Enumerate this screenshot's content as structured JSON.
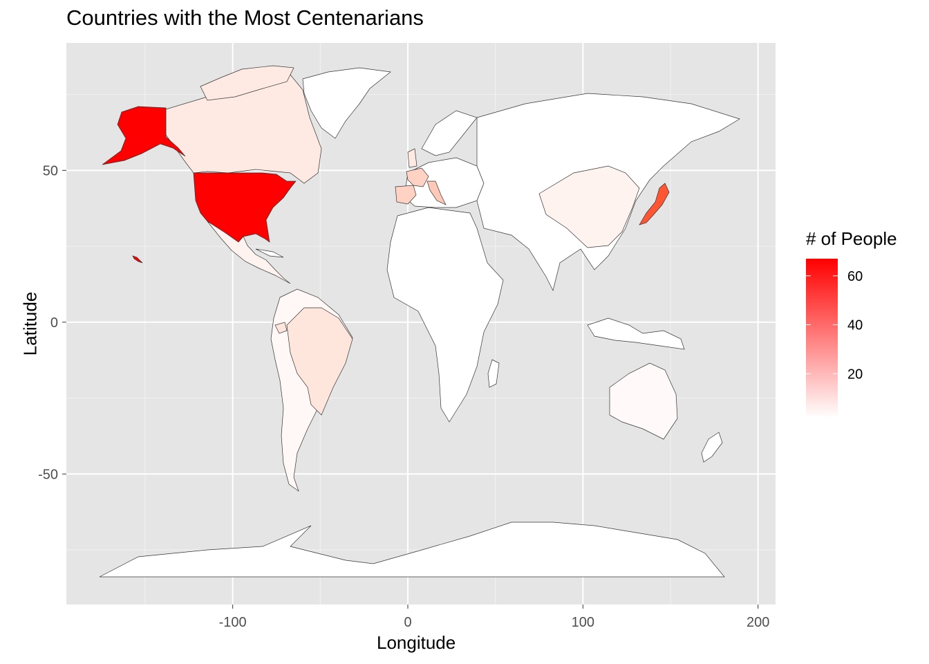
{
  "title": "Countries with the Most Centenarians",
  "x_axis": {
    "label": "Longitude",
    "ticks": [
      "-100",
      "0",
      "100",
      "200"
    ]
  },
  "y_axis": {
    "label": "Latitude",
    "ticks": [
      "50",
      "0",
      "-50"
    ]
  },
  "legend": {
    "title": "# of People",
    "ticks": [
      "60",
      "40",
      "20"
    ]
  },
  "colors": {
    "panel": "#e5e5e5",
    "grid": "#ffffff",
    "low": "#ffffff",
    "high": "#ff0000",
    "border": "#333333"
  },
  "chart_data": {
    "type": "choropleth",
    "title": "Countries with the Most Centenarians",
    "xlabel": "Longitude",
    "ylabel": "Latitude",
    "xlim": [
      -195,
      210
    ],
    "ylim": [
      -93,
      92
    ],
    "x_ticks": [
      -100,
      0,
      100,
      200
    ],
    "y_ticks": [
      50,
      0,
      -50
    ],
    "grid": true,
    "legend_position": "right",
    "color_scale": {
      "low": "#ffffff",
      "high": "#ff0000",
      "min": 2,
      "max": 67
    },
    "regions": [
      {
        "name": "USA",
        "value": 67
      },
      {
        "name": "Japan",
        "value": 50
      },
      {
        "name": "Italy",
        "value": 14
      },
      {
        "name": "France",
        "value": 12
      },
      {
        "name": "Spain",
        "value": 12
      },
      {
        "name": "Brazil",
        "value": 8
      },
      {
        "name": "Canada",
        "value": 6
      },
      {
        "name": "UK",
        "value": 4
      },
      {
        "name": "Germany",
        "value": 4
      },
      {
        "name": "Ecuador",
        "value": 4
      },
      {
        "name": "Mexico",
        "value": 3
      },
      {
        "name": "Argentina",
        "value": 2
      },
      {
        "name": "China",
        "value": 2
      },
      {
        "name": "Australia",
        "value": 1
      }
    ]
  }
}
